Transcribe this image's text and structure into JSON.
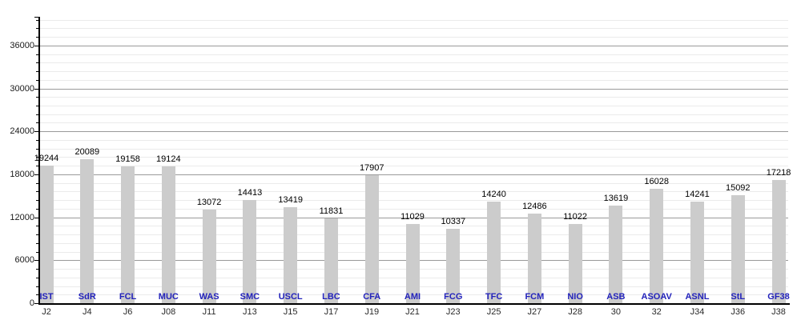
{
  "chart_data": {
    "type": "bar",
    "title": "",
    "xlabel": "",
    "ylabel": "",
    "categories": [
      "IST",
      "SdR",
      "FCL",
      "MUC",
      "WAS",
      "SMC",
      "USCL",
      "LBC",
      "CFA",
      "AMI",
      "FCG",
      "TFC",
      "FCM",
      "NIO",
      "ASB",
      "ASOAV",
      "ASNL",
      "StL",
      "GF38"
    ],
    "x_labels": [
      "J2",
      "J4",
      "J6",
      "J08",
      "J11",
      "J13",
      "J15",
      "J17",
      "J19",
      "J21",
      "J23",
      "J25",
      "J27",
      "J28",
      "30",
      "32",
      "J34",
      "J36",
      "J38"
    ],
    "values": [
      19244,
      20089,
      19158,
      19124,
      13072,
      14413,
      13419,
      11831,
      17907,
      11029,
      10337,
      14240,
      12486,
      11022,
      13619,
      16028,
      14241,
      15092,
      17218
    ],
    "value_labels": [
      "19244",
      "20089",
      "19158",
      "19124",
      "13072",
      "14413",
      "13419",
      "11831",
      "17907",
      "11029",
      "10337",
      "14240",
      "12486",
      "11022",
      "13619",
      "16028",
      "14241",
      "15092",
      "17218"
    ],
    "y_tick_labels": [
      "0",
      "6000",
      "12000",
      "18000",
      "24000",
      "30000",
      "36000"
    ],
    "y_major_ticks": [
      0,
      6000,
      12000,
      18000,
      24000,
      30000,
      36000
    ],
    "y_minor_step": 1200,
    "ylim": [
      0,
      40000
    ],
    "grid": "on",
    "legend": "none",
    "colors": {
      "bar_fill": "#cccccc",
      "category_label": "#2222bb",
      "value_label": "#000000",
      "x_label": "#2a2a2a",
      "y_label": "#1a1a1a",
      "grid_major": "#9a9a9a",
      "grid_minor": "#ebebeb",
      "axis": "#000000",
      "background": "#ffffff"
    }
  }
}
